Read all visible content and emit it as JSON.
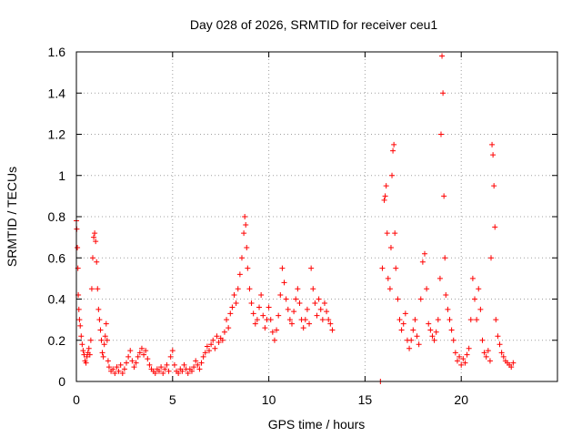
{
  "chart_data": {
    "type": "scatter",
    "title": "Day 028 of 2026, SRMTID for receiver ceu1",
    "xlabel": "GPS time / hours",
    "ylabel": "SRMTID / TECUs",
    "xlim": [
      0,
      25
    ],
    "ylim": [
      0,
      1.6
    ],
    "xticks": [
      0,
      5,
      10,
      15,
      20
    ],
    "xtick_labels": [
      "0",
      "5",
      "10",
      "15",
      "20"
    ],
    "yticks": [
      0,
      0.2,
      0.4,
      0.6,
      0.8,
      1.0,
      1.2,
      1.4,
      1.6
    ],
    "ytick_labels": [
      "0",
      "0.2",
      "0.4",
      "0.6",
      "0.8",
      "1",
      "1.2",
      "1.4",
      "1.6"
    ],
    "grid": true,
    "marker": "+",
    "color": "#ff0000",
    "series": [
      {
        "name": "SRMTID",
        "points": [
          [
            0.0,
            0.78
          ],
          [
            0.02,
            0.74
          ],
          [
            0.05,
            0.65
          ],
          [
            0.08,
            0.55
          ],
          [
            0.1,
            0.42
          ],
          [
            0.13,
            0.35
          ],
          [
            0.16,
            0.3
          ],
          [
            0.2,
            0.27
          ],
          [
            0.25,
            0.22
          ],
          [
            0.3,
            0.18
          ],
          [
            0.35,
            0.15
          ],
          [
            0.4,
            0.13
          ],
          [
            0.45,
            0.1
          ],
          [
            0.5,
            0.09
          ],
          [
            0.55,
            0.12
          ],
          [
            0.6,
            0.14
          ],
          [
            0.65,
            0.16
          ],
          [
            0.7,
            0.13
          ],
          [
            0.75,
            0.2
          ],
          [
            0.8,
            0.45
          ],
          [
            0.85,
            0.6
          ],
          [
            0.9,
            0.7
          ],
          [
            0.95,
            0.72
          ],
          [
            1.0,
            0.68
          ],
          [
            1.05,
            0.58
          ],
          [
            1.1,
            0.45
          ],
          [
            1.15,
            0.35
          ],
          [
            1.2,
            0.3
          ],
          [
            1.25,
            0.25
          ],
          [
            1.3,
            0.2
          ],
          [
            1.35,
            0.14
          ],
          [
            1.4,
            0.12
          ],
          [
            1.45,
            0.18
          ],
          [
            1.5,
            0.22
          ],
          [
            1.55,
            0.28
          ],
          [
            1.6,
            0.2
          ],
          [
            1.65,
            0.1
          ],
          [
            1.7,
            0.07
          ],
          [
            1.8,
            0.05
          ],
          [
            1.9,
            0.06
          ],
          [
            2.0,
            0.04
          ],
          [
            2.1,
            0.07
          ],
          [
            2.2,
            0.05
          ],
          [
            2.3,
            0.08
          ],
          [
            2.4,
            0.04
          ],
          [
            2.5,
            0.06
          ],
          [
            2.6,
            0.09
          ],
          [
            2.7,
            0.12
          ],
          [
            2.8,
            0.15
          ],
          [
            2.9,
            0.1
          ],
          [
            3.0,
            0.07
          ],
          [
            3.1,
            0.09
          ],
          [
            3.2,
            0.12
          ],
          [
            3.3,
            0.14
          ],
          [
            3.4,
            0.16
          ],
          [
            3.5,
            0.13
          ],
          [
            3.6,
            0.15
          ],
          [
            3.7,
            0.11
          ],
          [
            3.8,
            0.08
          ],
          [
            3.9,
            0.06
          ],
          [
            4.0,
            0.05
          ],
          [
            4.1,
            0.04
          ],
          [
            4.2,
            0.06
          ],
          [
            4.3,
            0.05
          ],
          [
            4.4,
            0.07
          ],
          [
            4.5,
            0.04
          ],
          [
            4.6,
            0.06
          ],
          [
            4.7,
            0.08
          ],
          [
            4.8,
            0.05
          ],
          [
            4.9,
            0.12
          ],
          [
            5.0,
            0.15
          ],
          [
            5.1,
            0.08
          ],
          [
            5.2,
            0.05
          ],
          [
            5.3,
            0.04
          ],
          [
            5.4,
            0.06
          ],
          [
            5.5,
            0.05
          ],
          [
            5.6,
            0.08
          ],
          [
            5.7,
            0.06
          ],
          [
            5.8,
            0.04
          ],
          [
            5.9,
            0.06
          ],
          [
            6.0,
            0.05
          ],
          [
            6.1,
            0.07
          ],
          [
            6.2,
            0.1
          ],
          [
            6.3,
            0.08
          ],
          [
            6.4,
            0.06
          ],
          [
            6.5,
            0.09
          ],
          [
            6.6,
            0.12
          ],
          [
            6.7,
            0.14
          ],
          [
            6.8,
            0.17
          ],
          [
            6.9,
            0.15
          ],
          [
            7.0,
            0.18
          ],
          [
            7.1,
            0.2
          ],
          [
            7.2,
            0.16
          ],
          [
            7.3,
            0.22
          ],
          [
            7.4,
            0.19
          ],
          [
            7.5,
            0.21
          ],
          [
            7.6,
            0.2
          ],
          [
            7.7,
            0.24
          ],
          [
            7.8,
            0.3
          ],
          [
            7.9,
            0.26
          ],
          [
            8.0,
            0.33
          ],
          [
            8.1,
            0.36
          ],
          [
            8.2,
            0.42
          ],
          [
            8.3,
            0.38
          ],
          [
            8.4,
            0.45
          ],
          [
            8.5,
            0.52
          ],
          [
            8.6,
            0.6
          ],
          [
            8.7,
            0.72
          ],
          [
            8.75,
            0.8
          ],
          [
            8.8,
            0.76
          ],
          [
            8.85,
            0.65
          ],
          [
            8.9,
            0.55
          ],
          [
            9.0,
            0.45
          ],
          [
            9.1,
            0.38
          ],
          [
            9.2,
            0.33
          ],
          [
            9.3,
            0.28
          ],
          [
            9.4,
            0.3
          ],
          [
            9.5,
            0.36
          ],
          [
            9.6,
            0.42
          ],
          [
            9.7,
            0.32
          ],
          [
            9.8,
            0.26
          ],
          [
            9.9,
            0.3
          ],
          [
            10.0,
            0.36
          ],
          [
            10.1,
            0.3
          ],
          [
            10.2,
            0.24
          ],
          [
            10.3,
            0.2
          ],
          [
            10.4,
            0.25
          ],
          [
            10.5,
            0.32
          ],
          [
            10.6,
            0.42
          ],
          [
            10.7,
            0.55
          ],
          [
            10.8,
            0.48
          ],
          [
            10.9,
            0.4
          ],
          [
            11.0,
            0.35
          ],
          [
            11.1,
            0.3
          ],
          [
            11.2,
            0.28
          ],
          [
            11.3,
            0.34
          ],
          [
            11.4,
            0.4
          ],
          [
            11.5,
            0.45
          ],
          [
            11.6,
            0.38
          ],
          [
            11.7,
            0.3
          ],
          [
            11.8,
            0.26
          ],
          [
            11.9,
            0.3
          ],
          [
            12.0,
            0.35
          ],
          [
            12.1,
            0.28
          ],
          [
            12.2,
            0.55
          ],
          [
            12.3,
            0.45
          ],
          [
            12.4,
            0.38
          ],
          [
            12.5,
            0.32
          ],
          [
            12.6,
            0.4
          ],
          [
            12.7,
            0.35
          ],
          [
            12.8,
            0.3
          ],
          [
            12.9,
            0.38
          ],
          [
            13.0,
            0.34
          ],
          [
            13.1,
            0.3
          ],
          [
            13.2,
            0.28
          ],
          [
            13.3,
            0.25
          ],
          [
            15.8,
            0.0
          ],
          [
            15.9,
            0.55
          ],
          [
            16.0,
            0.88
          ],
          [
            16.05,
            0.9
          ],
          [
            16.1,
            0.95
          ],
          [
            16.15,
            0.72
          ],
          [
            16.2,
            0.5
          ],
          [
            16.3,
            0.45
          ],
          [
            16.35,
            0.65
          ],
          [
            16.4,
            1.0
          ],
          [
            16.45,
            1.12
          ],
          [
            16.5,
            1.15
          ],
          [
            16.55,
            0.72
          ],
          [
            16.6,
            0.55
          ],
          [
            16.7,
            0.4
          ],
          [
            16.8,
            0.3
          ],
          [
            16.9,
            0.25
          ],
          [
            17.0,
            0.28
          ],
          [
            17.1,
            0.33
          ],
          [
            17.2,
            0.2
          ],
          [
            17.3,
            0.16
          ],
          [
            17.4,
            0.2
          ],
          [
            17.5,
            0.25
          ],
          [
            17.6,
            0.3
          ],
          [
            17.7,
            0.22
          ],
          [
            17.8,
            0.18
          ],
          [
            17.9,
            0.4
          ],
          [
            18.0,
            0.58
          ],
          [
            18.1,
            0.62
          ],
          [
            18.2,
            0.45
          ],
          [
            18.3,
            0.28
          ],
          [
            18.4,
            0.25
          ],
          [
            18.5,
            0.22
          ],
          [
            18.6,
            0.2
          ],
          [
            18.7,
            0.24
          ],
          [
            18.8,
            0.3
          ],
          [
            18.9,
            0.5
          ],
          [
            18.95,
            1.2
          ],
          [
            19.0,
            1.58
          ],
          [
            19.05,
            1.4
          ],
          [
            19.1,
            0.9
          ],
          [
            19.15,
            0.6
          ],
          [
            19.2,
            0.42
          ],
          [
            19.3,
            0.35
          ],
          [
            19.4,
            0.3
          ],
          [
            19.5,
            0.25
          ],
          [
            19.6,
            0.2
          ],
          [
            19.7,
            0.14
          ],
          [
            19.8,
            0.1
          ],
          [
            19.9,
            0.12
          ],
          [
            20.0,
            0.08
          ],
          [
            20.1,
            0.11
          ],
          [
            20.2,
            0.09
          ],
          [
            20.3,
            0.13
          ],
          [
            20.4,
            0.16
          ],
          [
            20.5,
            0.3
          ],
          [
            20.6,
            0.5
          ],
          [
            20.7,
            0.4
          ],
          [
            20.8,
            0.3
          ],
          [
            20.9,
            0.45
          ],
          [
            21.0,
            0.35
          ],
          [
            21.1,
            0.2
          ],
          [
            21.2,
            0.14
          ],
          [
            21.3,
            0.12
          ],
          [
            21.4,
            0.15
          ],
          [
            21.5,
            0.1
          ],
          [
            21.55,
            0.6
          ],
          [
            21.6,
            1.15
          ],
          [
            21.65,
            1.1
          ],
          [
            21.7,
            0.95
          ],
          [
            21.75,
            0.75
          ],
          [
            21.8,
            0.3
          ],
          [
            21.9,
            0.22
          ],
          [
            22.0,
            0.18
          ],
          [
            22.1,
            0.14
          ],
          [
            22.2,
            0.12
          ],
          [
            22.3,
            0.1
          ],
          [
            22.4,
            0.09
          ],
          [
            22.5,
            0.08
          ],
          [
            22.6,
            0.07
          ],
          [
            22.7,
            0.09
          ]
        ]
      }
    ]
  }
}
